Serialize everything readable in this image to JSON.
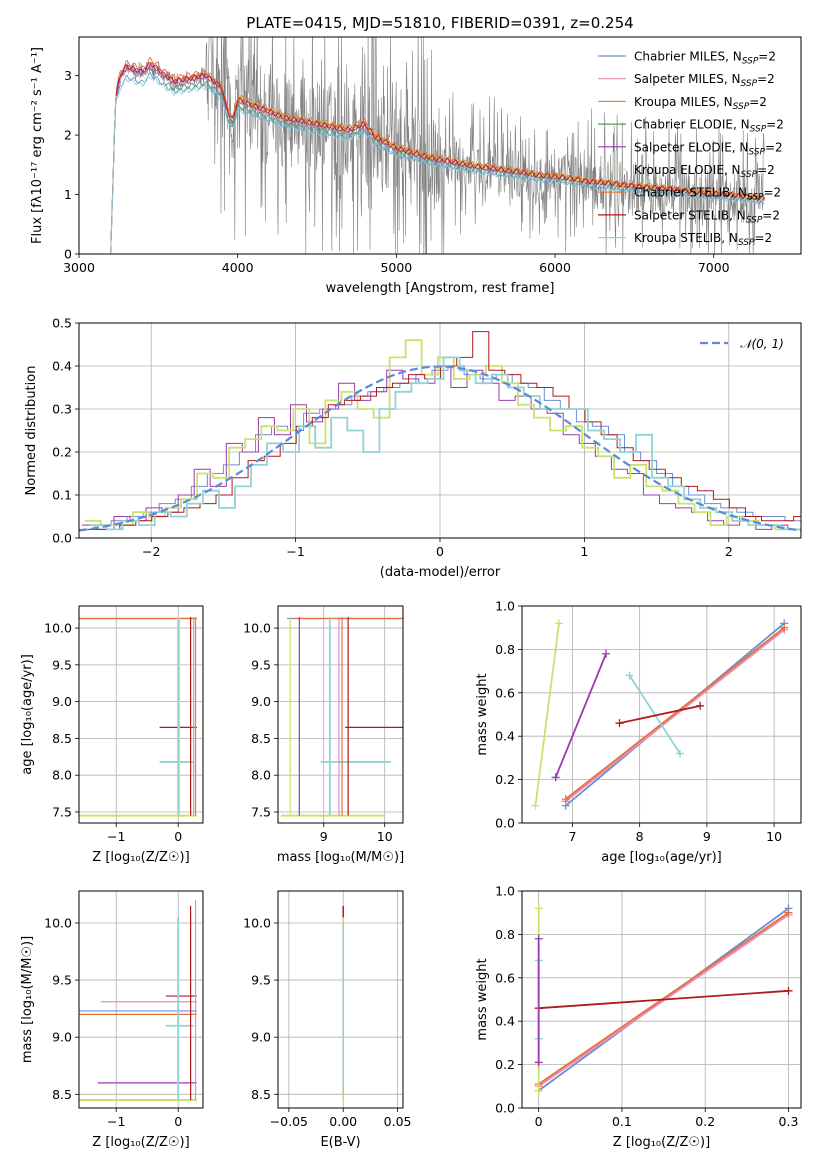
{
  "title": "PLATE=0415, MJD=51810, FIBERID=0391, z=0.254",
  "colors": {
    "data_spectrum": "#808080",
    "normal_curve": "#5b8ad6",
    "models": [
      "#6a8fd3",
      "#e68fb7",
      "#d98b3a",
      "#5a9a5a",
      "#9a3bb0",
      "#c9e26a",
      "#e8703d",
      "#b01b1b",
      "#8fd3d8"
    ]
  },
  "chart_data": [
    {
      "id": "spectrum",
      "type": "line",
      "xlabel": "wavelength [Angstrom, rest frame]",
      "ylabel": "Flux [fλ10⁻¹⁷ erg cm⁻² s⁻¹ A⁻¹]",
      "xlim": [
        3000,
        7550
      ],
      "ylim": [
        0,
        3.65
      ],
      "xticks": [
        3000,
        4000,
        5000,
        6000,
        7000
      ],
      "yticks": [
        0,
        1,
        2,
        3
      ],
      "legend_loc": "upper right",
      "series": [
        {
          "name": "Chabrier MILES, N_SSP=2"
        },
        {
          "name": "Salpeter MILES, N_SSP=2"
        },
        {
          "name": "Kroupa MILES, N_SSP=2"
        },
        {
          "name": "Chabrier ELODIE, N_SSP=2"
        },
        {
          "name": "Salpeter ELODIE, N_SSP=2"
        },
        {
          "name": "Kroupa ELODIE, N_SSP=2"
        },
        {
          "name": "Chabrier STELIB, N_SSP=2"
        },
        {
          "name": "Salpeter STELIB, N_SSP=2"
        },
        {
          "name": "Kroupa STELIB, N_SSP=2"
        }
      ],
      "model_curve": {
        "x": [
          3200,
          3230,
          3260,
          3300,
          3350,
          3400,
          3450,
          3500,
          3540,
          3600,
          3700,
          3800,
          3900,
          3930,
          3970,
          4000,
          4100,
          4200,
          4300,
          4400,
          4500,
          4600,
          4700,
          4800,
          4860,
          4900,
          5000,
          5100,
          5200,
          5300,
          5400,
          5500,
          5600,
          5700,
          5800,
          5900,
          6000,
          6100,
          6200,
          6300,
          6400,
          6500,
          6600,
          6700,
          6800,
          6900,
          7000,
          7100,
          7200,
          7300
        ],
        "y": [
          0,
          2.6,
          2.95,
          3.1,
          3.05,
          3.0,
          3.15,
          3.05,
          2.95,
          2.85,
          2.9,
          2.95,
          2.75,
          2.4,
          2.2,
          2.55,
          2.45,
          2.35,
          2.25,
          2.2,
          2.15,
          2.1,
          2.05,
          2.15,
          1.95,
          1.9,
          1.75,
          1.68,
          1.6,
          1.55,
          1.5,
          1.45,
          1.42,
          1.38,
          1.35,
          1.3,
          1.28,
          1.25,
          1.2,
          1.18,
          1.15,
          1.12,
          1.1,
          1.08,
          1.05,
          1.02,
          1.0,
          0.98,
          0.95,
          0.92
        ]
      },
      "model_offsets": [
        -0.08,
        0.02,
        0.05,
        -0.05,
        0.03,
        0.06,
        0.08,
        0.04,
        -0.1
      ]
    },
    {
      "id": "residuals",
      "type": "line",
      "xlabel": "(data-model)/error",
      "ylabel": "Normed distribution",
      "xlim": [
        -2.5,
        2.5
      ],
      "ylim": [
        0,
        0.5
      ],
      "xticks": [
        -2,
        -1,
        0,
        1,
        2
      ],
      "yticks": [
        0.0,
        0.1,
        0.2,
        0.3,
        0.4,
        0.5
      ],
      "legend": "𝒩(0, 1)",
      "legend_loc": "upper right",
      "histograms": [
        {
          "color_index": 0,
          "values": [
            0.02,
            0.03,
            0.04,
            0.05,
            0.06,
            0.08,
            0.09,
            0.12,
            0.15,
            0.17,
            0.2,
            0.24,
            0.26,
            0.25,
            0.29,
            0.3,
            0.31,
            0.33,
            0.34,
            0.35,
            0.36,
            0.38,
            0.39,
            0.4,
            0.38,
            0.37,
            0.38,
            0.36,
            0.35,
            0.32,
            0.3,
            0.27,
            0.26,
            0.24,
            0.2,
            0.18,
            0.15,
            0.12,
            0.1,
            0.08,
            0.07,
            0.06,
            0.05,
            0.05,
            0.04
          ]
        },
        {
          "color_index": 4,
          "values": [
            0.03,
            0.02,
            0.05,
            0.04,
            0.07,
            0.06,
            0.1,
            0.16,
            0.12,
            0.22,
            0.2,
            0.28,
            0.24,
            0.31,
            0.27,
            0.3,
            0.36,
            0.32,
            0.34,
            0.39,
            0.37,
            0.36,
            0.4,
            0.35,
            0.39,
            0.36,
            0.32,
            0.33,
            0.3,
            0.29,
            0.24,
            0.22,
            0.19,
            0.16,
            0.15,
            0.1,
            0.08,
            0.07,
            0.06,
            0.04,
            0.03,
            0.05,
            0.02,
            0.03,
            0.02
          ]
        },
        {
          "color_index": 5,
          "values": [
            0.04,
            0.03,
            0.03,
            0.06,
            0.05,
            0.07,
            0.09,
            0.15,
            0.14,
            0.21,
            0.23,
            0.26,
            0.25,
            0.3,
            0.22,
            0.32,
            0.34,
            0.3,
            0.28,
            0.42,
            0.46,
            0.38,
            0.42,
            0.37,
            0.38,
            0.4,
            0.36,
            0.31,
            0.28,
            0.25,
            0.26,
            0.21,
            0.19,
            0.14,
            0.17,
            0.12,
            0.11,
            0.08,
            0.06,
            0.03,
            0.05,
            0.04,
            0.03,
            0.02,
            0.02
          ]
        },
        {
          "color_index": 7,
          "values": [
            0.02,
            0.02,
            0.03,
            0.04,
            0.05,
            0.06,
            0.07,
            0.08,
            0.1,
            0.14,
            0.18,
            0.19,
            0.22,
            0.26,
            0.28,
            0.31,
            0.32,
            0.33,
            0.35,
            0.36,
            0.38,
            0.37,
            0.4,
            0.42,
            0.48,
            0.39,
            0.38,
            0.36,
            0.35,
            0.33,
            0.3,
            0.27,
            0.24,
            0.21,
            0.18,
            0.16,
            0.14,
            0.12,
            0.11,
            0.09,
            0.07,
            0.05,
            0.04,
            0.04,
            0.05
          ]
        },
        {
          "color_index": 8,
          "values": [
            0.03,
            0.02,
            0.04,
            0.03,
            0.06,
            0.05,
            0.08,
            0.11,
            0.07,
            0.12,
            0.17,
            0.22,
            0.2,
            0.26,
            0.21,
            0.28,
            0.25,
            0.2,
            0.3,
            0.34,
            0.36,
            0.37,
            0.42,
            0.39,
            0.36,
            0.38,
            0.35,
            0.33,
            0.3,
            0.3,
            0.3,
            0.25,
            0.23,
            0.2,
            0.24,
            0.14,
            0.12,
            0.09,
            0.07,
            0.06,
            0.04,
            0.03,
            0.03,
            0.02,
            0.02
          ]
        }
      ]
    },
    {
      "id": "age-vs-Z",
      "type": "scatter",
      "xlabel": "Z [log₁₀(Z/Z☉)]",
      "ylabel": "age  [log₁₀(age/yr)]",
      "xlim": [
        -1.6,
        0.4
      ],
      "ylim": [
        7.35,
        10.3
      ],
      "xticks": [
        -1,
        0
      ],
      "yticks": [
        7.5,
        8.0,
        8.5,
        9.0,
        9.5,
        10.0
      ]
    },
    {
      "id": "age-vs-mass",
      "type": "scatter",
      "xlabel": "mass [log₁₀(M/M☉)]",
      "ylabel": "",
      "xlim": [
        8.25,
        10.3
      ],
      "ylim": [
        7.35,
        10.3
      ],
      "xticks": [
        9,
        10
      ],
      "yticks": [
        7.5,
        8.0,
        8.5,
        9.0,
        9.5,
        10.0
      ]
    },
    {
      "id": "weight-vs-age",
      "type": "line",
      "xlabel": "age  [log₁₀(age/yr)]",
      "ylabel": "mass weight",
      "xlim": [
        6.25,
        10.4
      ],
      "ylim": [
        0.0,
        1.0
      ],
      "xticks": [
        7,
        8,
        9,
        10
      ],
      "yticks": [
        0.0,
        0.2,
        0.4,
        0.6,
        0.8,
        1.0
      ],
      "segments": [
        {
          "color_index": 0,
          "x": [
            6.9,
            10.15
          ],
          "y": [
            0.08,
            0.92
          ]
        },
        {
          "color_index": 1,
          "x": [
            6.9,
            10.15
          ],
          "y": [
            0.1,
            0.89
          ]
        },
        {
          "color_index": 6,
          "x": [
            6.9,
            10.15
          ],
          "y": [
            0.11,
            0.9
          ]
        },
        {
          "color_index": 5,
          "x": [
            6.45,
            6.8
          ],
          "y": [
            0.08,
            0.92
          ]
        },
        {
          "color_index": 4,
          "x": [
            6.75,
            7.5
          ],
          "y": [
            0.21,
            0.78
          ]
        },
        {
          "color_index": 8,
          "x": [
            7.85,
            8.6
          ],
          "y": [
            0.68,
            0.32
          ]
        },
        {
          "color_index": 7,
          "x": [
            7.7,
            8.9
          ],
          "y": [
            0.46,
            0.54
          ]
        }
      ]
    },
    {
      "id": "mass-vs-Z",
      "type": "scatter",
      "xlabel": "Z [log₁₀(Z/Z☉)]",
      "ylabel": "mass [log₁₀(M/M☉)]",
      "xlim": [
        -1.6,
        0.4
      ],
      "ylim": [
        8.38,
        10.28
      ],
      "xticks": [
        -1,
        0
      ],
      "yticks": [
        8.5,
        9.0,
        9.5,
        10.0
      ]
    },
    {
      "id": "mass-vs-ebv",
      "type": "scatter",
      "xlabel": "E(B-V)",
      "ylabel": "",
      "xlim": [
        -0.06,
        0.055
      ],
      "ylim": [
        8.38,
        10.28
      ],
      "xticks": [
        -0.05,
        0.0,
        0.05
      ],
      "xticklabels": [
        "−0.05",
        "0.00",
        "0.05"
      ],
      "yticks": [
        8.5,
        9.0,
        9.5,
        10.0
      ]
    },
    {
      "id": "weight-vs-Z",
      "type": "line",
      "xlabel": "Z [log₁₀(Z/Z☉)]",
      "ylabel": "mass weight",
      "xlim": [
        -0.02,
        0.315
      ],
      "ylim": [
        0.0,
        1.0
      ],
      "xticks": [
        0.0,
        0.1,
        0.2,
        0.3
      ],
      "yticks": [
        0.0,
        0.2,
        0.4,
        0.6,
        0.8,
        1.0
      ],
      "segments": [
        {
          "color_index": 0,
          "x": [
            0.0,
            0.3
          ],
          "y": [
            0.08,
            0.92
          ]
        },
        {
          "color_index": 1,
          "x": [
            0.0,
            0.3
          ],
          "y": [
            0.1,
            0.89
          ]
        },
        {
          "color_index": 6,
          "x": [
            0.0,
            0.3
          ],
          "y": [
            0.11,
            0.9
          ]
        },
        {
          "color_index": 7,
          "x": [
            0.0,
            0.3
          ],
          "y": [
            0.46,
            0.54
          ]
        },
        {
          "color_index": 5,
          "x": [
            0.0,
            0.0
          ],
          "y": [
            0.08,
            0.92
          ]
        },
        {
          "color_index": 8,
          "x": [
            0.0,
            0.0
          ],
          "y": [
            0.32,
            0.68
          ]
        },
        {
          "color_index": 4,
          "x": [
            0.0,
            0.0
          ],
          "y": [
            0.21,
            0.78
          ]
        }
      ]
    }
  ]
}
